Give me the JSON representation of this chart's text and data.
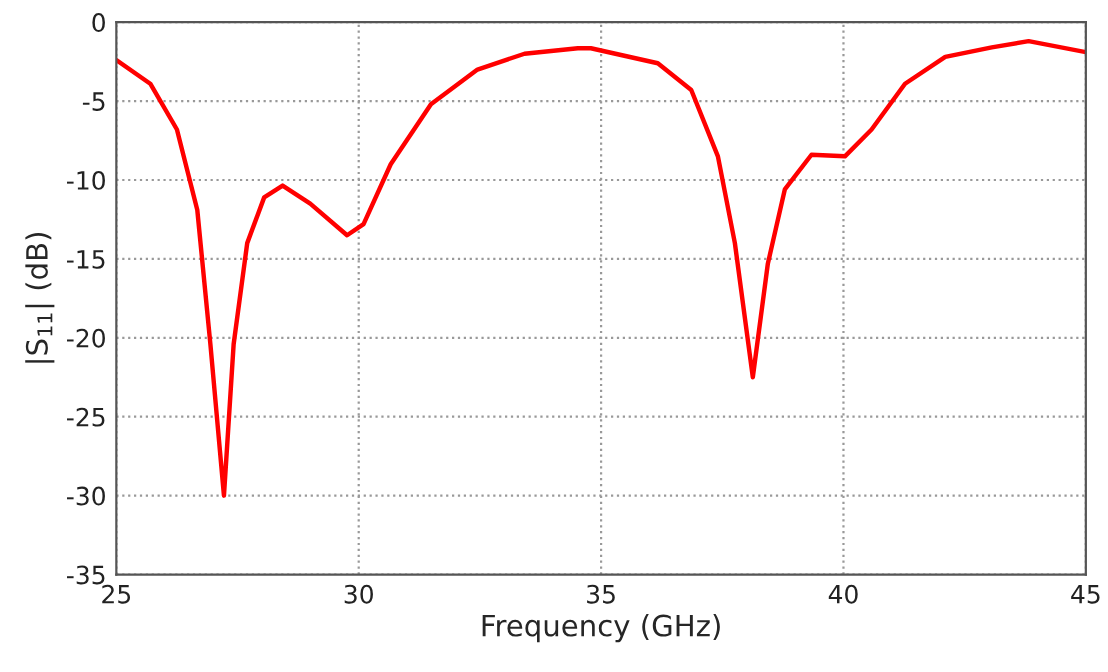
{
  "chart_data": {
    "type": "line",
    "xlabel": "Frequency (GHz)",
    "ylabel": "|S$_{11}$| (dB)",
    "xlim": [
      25,
      45
    ],
    "xticks": [
      25,
      30,
      35,
      40,
      45
    ],
    "ylim": [
      -35,
      0
    ],
    "yticks": [
      -35,
      -30,
      -25,
      -20,
      -15,
      -10,
      -5,
      0
    ],
    "grid": true,
    "series": [
      {
        "color": "#ff0000",
        "x": [
          25,
          25.7,
          26.25,
          26.67,
          26.94,
          27.22,
          27.42,
          27.7,
          28.05,
          28.43,
          29.0,
          29.76,
          30.1,
          30.66,
          31.49,
          32.45,
          33.42,
          34.52,
          34.79,
          36.17,
          36.86,
          37.41,
          37.76,
          38.13,
          38.44,
          38.79,
          39.34,
          40.03,
          40.58,
          41.27,
          42.1,
          43.06,
          43.82,
          45
        ],
        "values": [
          -2.4,
          -3.9,
          -6.8,
          -11.9,
          -20.4,
          -30,
          -20.4,
          -14.0,
          -11.1,
          -10.35,
          -11.5,
          -13.5,
          -12.8,
          -9.0,
          -5.2,
          -3.0,
          -2.0,
          -1.65,
          -1.65,
          -2.6,
          -4.3,
          -8.5,
          -14.0,
          -22.5,
          -15.3,
          -10.6,
          -8.4,
          -8.5,
          -6.8,
          -3.9,
          -2.2,
          -1.6,
          -1.2,
          -1.9
        ]
      }
    ]
  }
}
